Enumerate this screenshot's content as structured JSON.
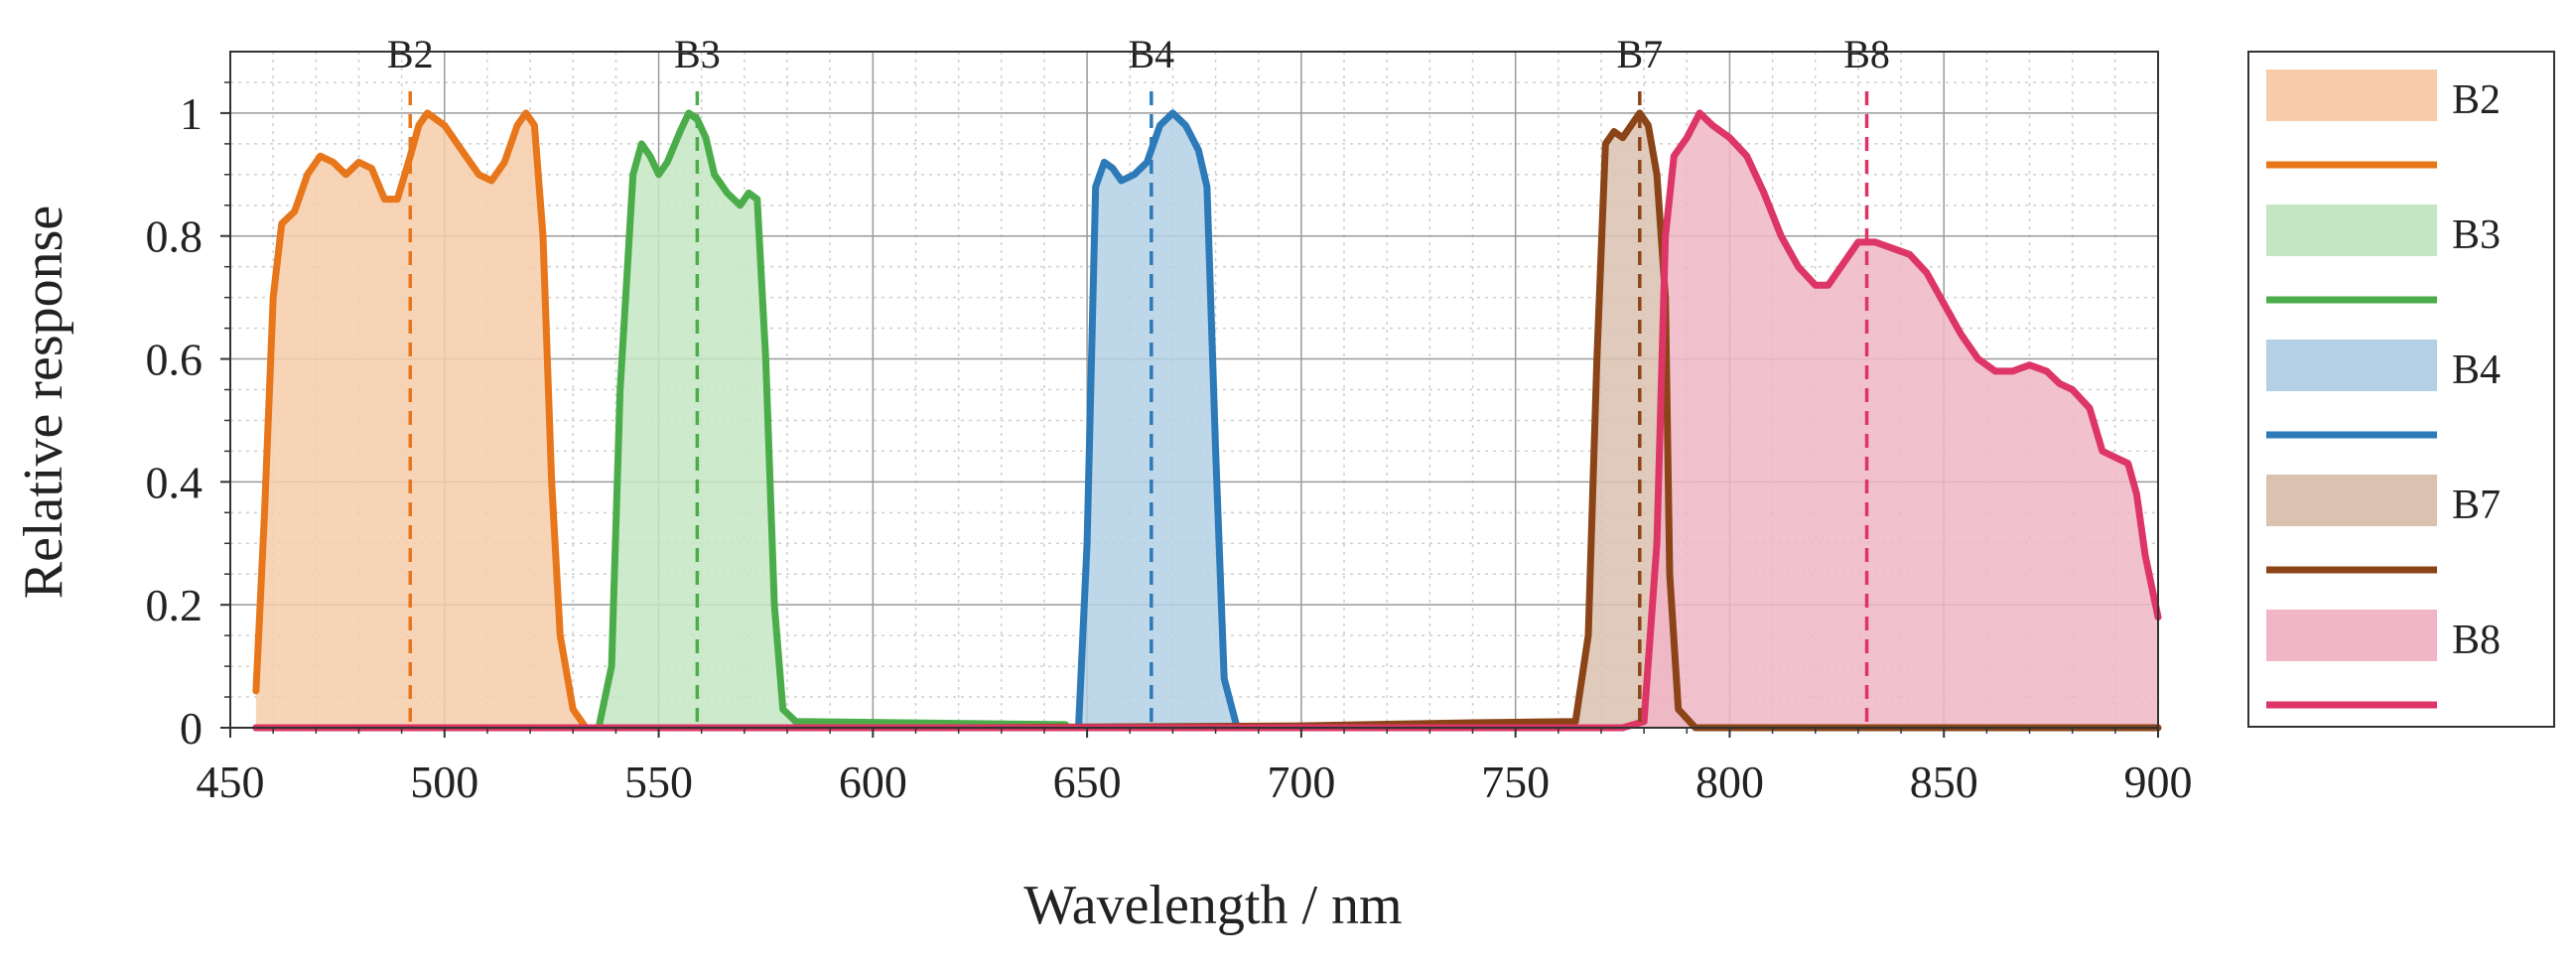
{
  "chart_data": {
    "type": "area",
    "xlabel": "Wavelength / nm",
    "ylabel": "Relative response",
    "xlim": [
      450,
      900
    ],
    "ylim": [
      0,
      1.1
    ],
    "xticks": [
      450,
      500,
      550,
      600,
      650,
      700,
      750,
      800,
      850,
      900
    ],
    "xtick_labels": [
      "450",
      "500",
      "550",
      "600",
      "650",
      "700",
      "750",
      "800",
      "850",
      "900"
    ],
    "yticks": [
      0,
      0.2,
      0.4,
      0.6,
      0.8,
      1
    ],
    "ytick_labels": [
      "0",
      "0.2",
      "0.4",
      "0.6",
      "0.8",
      "1"
    ],
    "grid": true,
    "minor_grid": true,
    "legend_position": "right",
    "series": [
      {
        "name": "B2",
        "color": "#e8761a",
        "fill": "#f7ccaa",
        "center": 492,
        "points": [
          [
            456,
            0.06
          ],
          [
            458,
            0.35
          ],
          [
            460,
            0.7
          ],
          [
            462,
            0.82
          ],
          [
            465,
            0.84
          ],
          [
            468,
            0.9
          ],
          [
            471,
            0.93
          ],
          [
            474,
            0.92
          ],
          [
            477,
            0.9
          ],
          [
            480,
            0.92
          ],
          [
            483,
            0.91
          ],
          [
            486,
            0.86
          ],
          [
            489,
            0.86
          ],
          [
            492,
            0.93
          ],
          [
            494,
            0.98
          ],
          [
            496,
            1.0
          ],
          [
            500,
            0.98
          ],
          [
            504,
            0.94
          ],
          [
            508,
            0.9
          ],
          [
            511,
            0.89
          ],
          [
            514,
            0.92
          ],
          [
            517,
            0.98
          ],
          [
            519,
            1.0
          ],
          [
            521,
            0.98
          ],
          [
            523,
            0.8
          ],
          [
            525,
            0.4
          ],
          [
            527,
            0.15
          ],
          [
            530,
            0.03
          ],
          [
            533,
            0.0
          ]
        ]
      },
      {
        "name": "B3",
        "color": "#4aad4a",
        "fill": "#c4e6c3",
        "center": 559,
        "points": [
          [
            536,
            0.0
          ],
          [
            539,
            0.1
          ],
          [
            541,
            0.55
          ],
          [
            544,
            0.9
          ],
          [
            546,
            0.95
          ],
          [
            548,
            0.93
          ],
          [
            550,
            0.9
          ],
          [
            552,
            0.92
          ],
          [
            555,
            0.97
          ],
          [
            557,
            1.0
          ],
          [
            559,
            0.99
          ],
          [
            561,
            0.96
          ],
          [
            563,
            0.9
          ],
          [
            566,
            0.87
          ],
          [
            569,
            0.85
          ],
          [
            571,
            0.87
          ],
          [
            573,
            0.86
          ],
          [
            575,
            0.6
          ],
          [
            577,
            0.2
          ],
          [
            579,
            0.03
          ],
          [
            582,
            0.01
          ],
          [
            645,
            0.005
          ]
        ]
      },
      {
        "name": "B4",
        "color": "#2d7ab8",
        "fill": "#b3d0e5",
        "center": 665,
        "points": [
          [
            648,
            0.0
          ],
          [
            650,
            0.3
          ],
          [
            652,
            0.88
          ],
          [
            654,
            0.92
          ],
          [
            656,
            0.91
          ],
          [
            658,
            0.89
          ],
          [
            661,
            0.9
          ],
          [
            664,
            0.92
          ],
          [
            667,
            0.98
          ],
          [
            670,
            1.0
          ],
          [
            673,
            0.98
          ],
          [
            676,
            0.94
          ],
          [
            678,
            0.88
          ],
          [
            680,
            0.45
          ],
          [
            682,
            0.08
          ],
          [
            685,
            0.0
          ]
        ]
      },
      {
        "name": "B7",
        "color": "#8b4418",
        "fill": "#dbc1b0",
        "center": 779,
        "points": [
          [
            456,
            0.0
          ],
          [
            620,
            0.0
          ],
          [
            700,
            0.003
          ],
          [
            740,
            0.008
          ],
          [
            764,
            0.01
          ],
          [
            767,
            0.15
          ],
          [
            769,
            0.6
          ],
          [
            771,
            0.95
          ],
          [
            773,
            0.97
          ],
          [
            775,
            0.96
          ],
          [
            777,
            0.98
          ],
          [
            779,
            1.0
          ],
          [
            781,
            0.98
          ],
          [
            783,
            0.9
          ],
          [
            785,
            0.7
          ],
          [
            786,
            0.25
          ],
          [
            788,
            0.03
          ],
          [
            792,
            0.0
          ],
          [
            900,
            0.0
          ]
        ]
      },
      {
        "name": "B8",
        "color": "#dc3566",
        "fill": "#f0b6c6",
        "center": 832,
        "points": [
          [
            456,
            0.0
          ],
          [
            775,
            0.0
          ],
          [
            780,
            0.01
          ],
          [
            783,
            0.3
          ],
          [
            785,
            0.8
          ],
          [
            787,
            0.93
          ],
          [
            790,
            0.96
          ],
          [
            793,
            1.0
          ],
          [
            796,
            0.98
          ],
          [
            800,
            0.96
          ],
          [
            804,
            0.93
          ],
          [
            808,
            0.87
          ],
          [
            812,
            0.8
          ],
          [
            816,
            0.75
          ],
          [
            820,
            0.72
          ],
          [
            823,
            0.72
          ],
          [
            826,
            0.75
          ],
          [
            830,
            0.79
          ],
          [
            834,
            0.79
          ],
          [
            838,
            0.78
          ],
          [
            842,
            0.77
          ],
          [
            846,
            0.74
          ],
          [
            850,
            0.69
          ],
          [
            854,
            0.64
          ],
          [
            858,
            0.6
          ],
          [
            862,
            0.58
          ],
          [
            866,
            0.58
          ],
          [
            870,
            0.59
          ],
          [
            874,
            0.58
          ],
          [
            877,
            0.56
          ],
          [
            880,
            0.55
          ],
          [
            884,
            0.52
          ],
          [
            887,
            0.45
          ],
          [
            890,
            0.44
          ],
          [
            893,
            0.43
          ],
          [
            895,
            0.38
          ],
          [
            897,
            0.28
          ],
          [
            900,
            0.18
          ]
        ]
      }
    ]
  }
}
